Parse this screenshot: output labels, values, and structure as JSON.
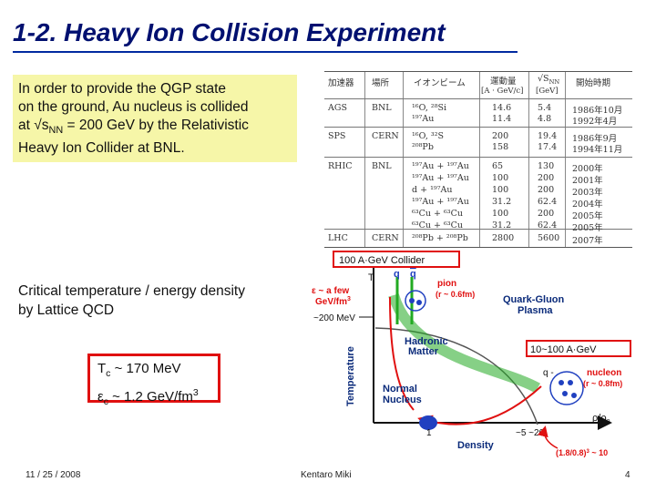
{
  "slide": {
    "title": "1-2. Heavy Ion Collision Experiment",
    "intro_lines": [
      "In order to provide the QGP state",
      "on the ground, Au nucleus is collided",
      "at √s",
      "NN",
      " = 200 GeV by the Relativistic",
      "Heavy Ion Collider at BNL."
    ],
    "lattice_lines": [
      "Critical temperature / energy density",
      "by Lattice QCD"
    ],
    "tc_box": {
      "tc_sym": "T",
      "tc_sub": "c",
      "tc_val": " ~ 170 MeV",
      "ec_sym": "ε",
      "ec_sub": "c",
      "ec_val": " ~ 1.2 GeV/fm",
      "ec_sup": "3"
    },
    "footer": {
      "date": "11 / 25 / 2008",
      "author": "Kentaro Miki",
      "page": "4"
    }
  },
  "table": {
    "headers": [
      "加速器",
      "場所",
      "イオンビーム",
      "運動量",
      "[A · GeV/c]",
      "√S",
      "NN",
      "[GeV]",
      "開始時期"
    ],
    "rows": [
      [
        "AGS",
        "BNL",
        "¹⁶O, ²⁸Si",
        "14.6",
        "5.4",
        "1986年10月"
      ],
      [
        "",
        "",
        "¹⁹⁷Au",
        "11.4",
        "4.8",
        "1992年4月"
      ],
      [
        "SPS",
        "CERN",
        "¹⁶O, ³²S",
        "200",
        "19.4",
        "1986年9月"
      ],
      [
        "",
        "",
        "²⁰⁸Pb",
        "158",
        "17.4",
        "1994年11月"
      ],
      [
        "RHIC",
        "BNL",
        "¹⁹⁷Au + ¹⁹⁷Au",
        "65",
        "130",
        "2000年"
      ],
      [
        "",
        "",
        "¹⁹⁷Au + ¹⁹⁷Au",
        "100",
        "200",
        "2001年"
      ],
      [
        "",
        "",
        "d + ¹⁹⁷Au",
        "100",
        "200",
        "2003年"
      ],
      [
        "",
        "",
        "¹⁹⁷Au + ¹⁹⁷Au",
        "31.2",
        "62.4",
        "2004年"
      ],
      [
        "",
        "",
        "⁶³Cu + ⁶³Cu",
        "100",
        "200",
        "2005年"
      ],
      [
        "",
        "",
        "⁶³Cu + ⁶³Cu",
        "31.2",
        "62.4",
        "2005年"
      ],
      [
        "LHC",
        "CERN",
        "²⁰⁸Pb + ²⁰⁸Pb",
        "2800",
        "5600",
        "2007年"
      ]
    ]
  },
  "diagram": {
    "collider_label": "100 A·GeV Collider",
    "t_axis": "T",
    "q_label": "q",
    "qbar_label": "q",
    "pion_label": "pion",
    "pion_size": "(r ~ 0.6fm)",
    "few_gev_1": "ε ~ a few",
    "few_gev_2": "GeV/fm",
    "few_gev_sup": "3",
    "mev_label": "~200 MeV",
    "qgp_1": "Quark-Gluon",
    "qgp_2": "Plasma",
    "hadronic_1": "Hadronic",
    "hadronic_2": "Matter",
    "ags_label": "10~100 A·GeV",
    "q_minus": "q -",
    "nucleon_label": "nucleon",
    "nucleon_size": "(r ~ 0.8fm)",
    "normal_1": "Normal",
    "normal_2": "Nucleus",
    "temperature_axis": "Temperature",
    "density_axis": "Density",
    "rho_label": "ρ/ρ",
    "rho_sub": "0",
    "tick_1": "1",
    "tick_5_20": "~5 ~20",
    "tick_formula": "(1.8/0.8)",
    "tick_formula_sup": "3",
    "tick_formula_end": " ~ 10",
    "colors": {
      "red": "#e01010",
      "green": "#22aa22",
      "blue": "#2040c0",
      "navy": "#0a2a7a"
    }
  }
}
